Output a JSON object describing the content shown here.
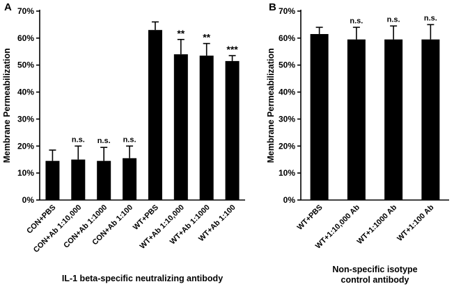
{
  "figure": {
    "panels": [
      {
        "label": "A"
      },
      {
        "label": "B"
      }
    ]
  },
  "chart_data": [
    {
      "type": "bar",
      "panel": "A",
      "title": "",
      "xlabel": "IL-1 beta-specific neutralizing antibody",
      "ylabel": "Membrane Permeabilization",
      "ylim": [
        0,
        70
      ],
      "ytick_step": 10,
      "ytick_suffix": "%",
      "grid": false,
      "legend": "none",
      "bar_color": "#000000",
      "categories": [
        "CON+PBS",
        "CON+Ab 1:10,000",
        "CON+Ab 1:1000",
        "CON+Ab 1:100",
        "WT+PBS",
        "WT+Ab 1:10,000",
        "WT+Ab 1:1000",
        "WT+Ab 1:100"
      ],
      "values": [
        14.5,
        15,
        14.5,
        15.5,
        63,
        54,
        53.5,
        51.5
      ],
      "errors": [
        4,
        5,
        5,
        4.5,
        3,
        5.5,
        4.5,
        2
      ],
      "annotations": [
        "",
        "n.s.",
        "n.s.",
        "n.s.",
        "",
        "**",
        "**",
        "***"
      ]
    },
    {
      "type": "bar",
      "panel": "B",
      "title": "",
      "xlabel": "Non-specific isotype control antibody",
      "xlabel_lines": [
        "Non-specific isotype",
        "control antibody"
      ],
      "ylabel": "Membrane Permeabilization",
      "ylim": [
        0,
        70
      ],
      "ytick_step": 10,
      "ytick_suffix": "%",
      "grid": false,
      "legend": "none",
      "bar_color": "#000000",
      "categories": [
        "WT+PBS",
        "WT+1:10,000 Ab",
        "WT+1:1000 Ab",
        "WT+1:100 Ab"
      ],
      "values": [
        61.5,
        59.5,
        59.5,
        59.5
      ],
      "errors": [
        2.5,
        4.5,
        5,
        5.5
      ],
      "annotations": [
        "",
        "n.s.",
        "n.s.",
        "n.s."
      ]
    }
  ]
}
